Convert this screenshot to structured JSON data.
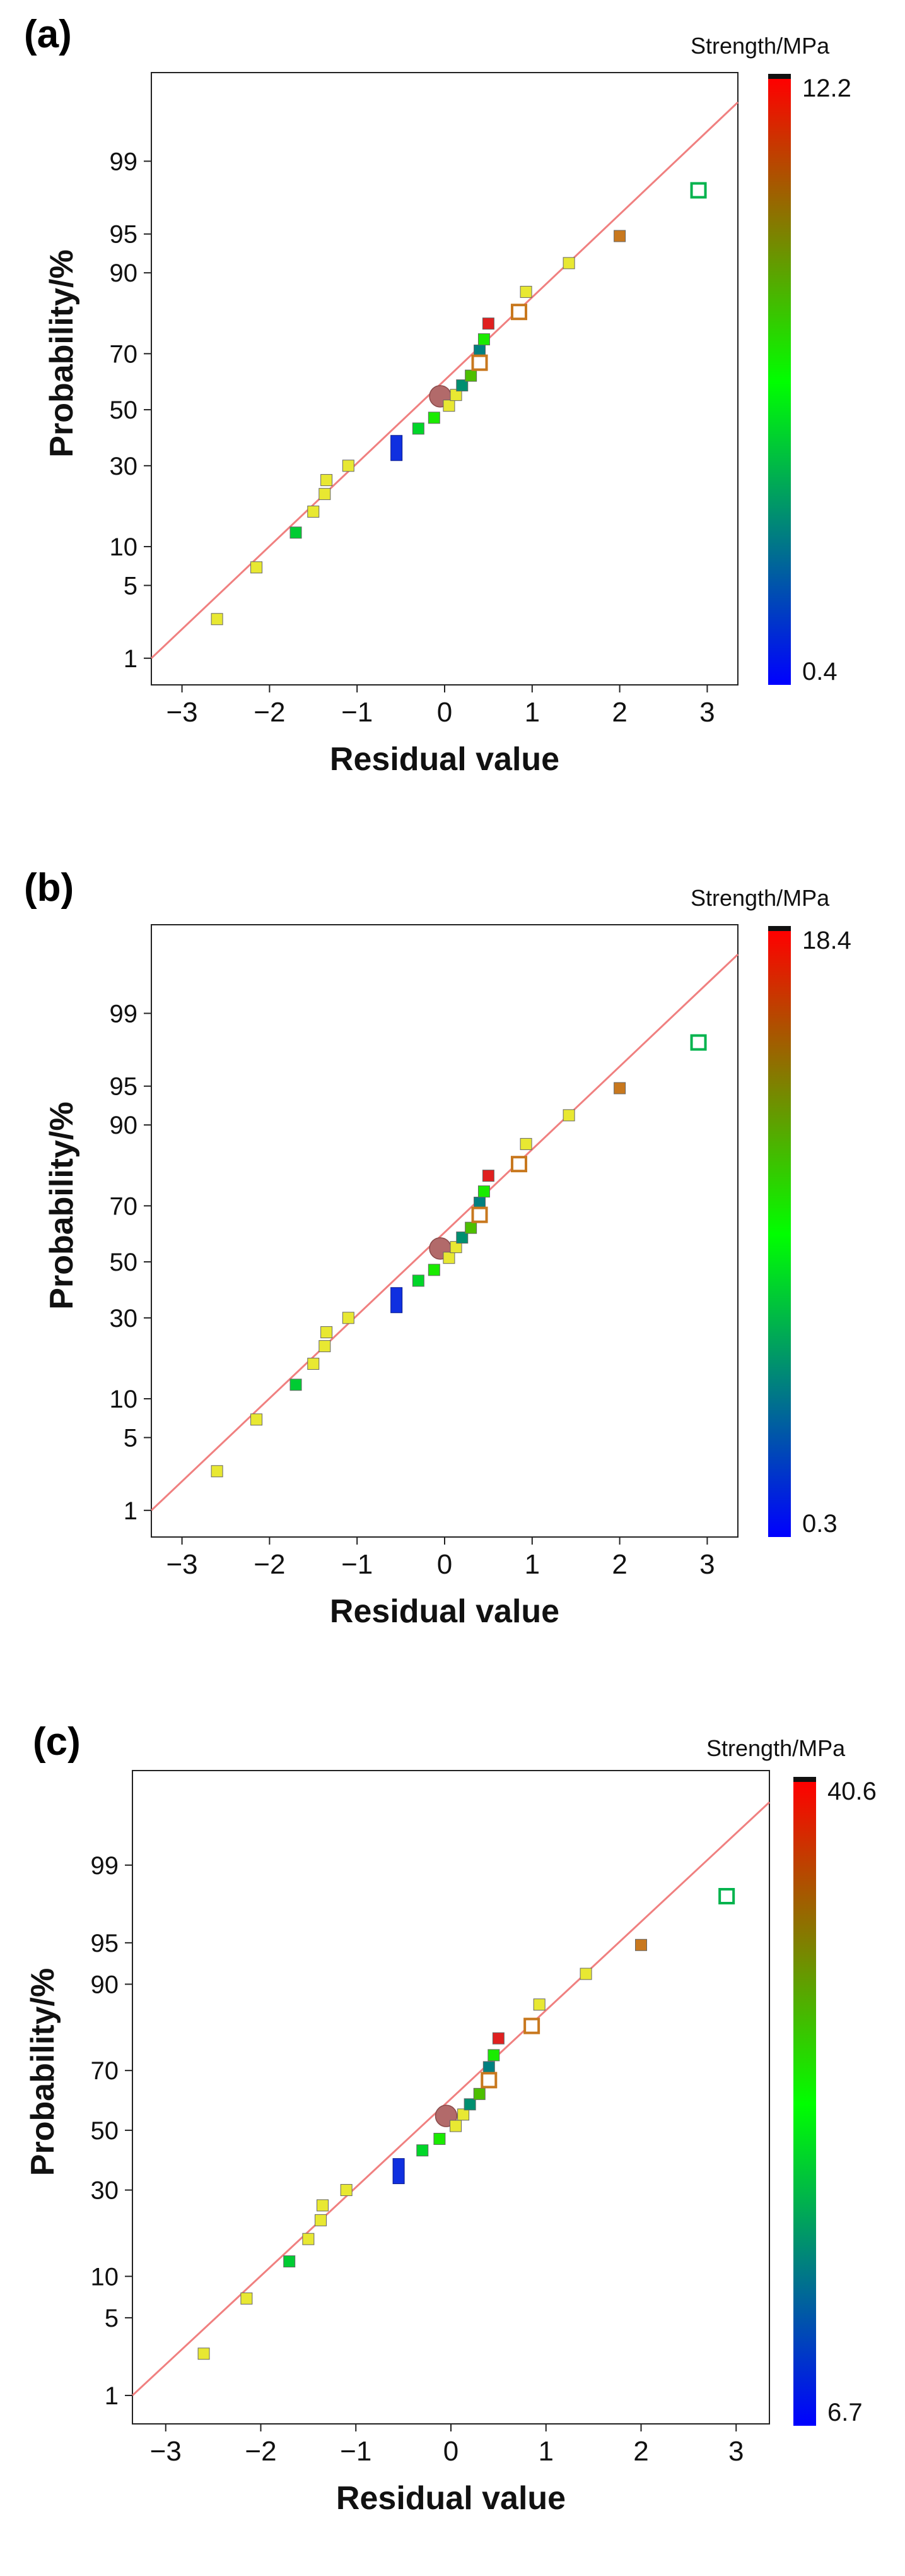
{
  "panels": [
    {
      "label": "(a)",
      "chart_data": {
        "type": "scatter",
        "title": "",
        "xlabel": "Residual value",
        "ylabel": "Probability/%",
        "xlim": [
          -3.35,
          3.35
        ],
        "xticks": [
          -3,
          -2,
          -1,
          0,
          1,
          2,
          3
        ],
        "xtick_labels": [
          "−3",
          "−2",
          "−1",
          "0",
          "1",
          "2",
          "3"
        ],
        "yticks": [
          1,
          5,
          10,
          30,
          50,
          70,
          90,
          95,
          99
        ],
        "ytick_labels": [
          "1",
          "5",
          "10",
          "30",
          "50",
          "70",
          "90",
          "95",
          "99"
        ],
        "yscale": "normal-probability",
        "colorbar": {
          "title": "Strength/MPa",
          "max": 12.2,
          "min": 0.4,
          "max_label": "12.2",
          "min_label": "0.4"
        },
        "reference_line": {
          "from": [
            -3.35,
            1.0
          ],
          "to": [
            3.35,
            99.8
          ],
          "color": "#f08080"
        },
        "points": [
          {
            "x": -2.6,
            "y": 2.5,
            "c": 0.78
          },
          {
            "x": -2.15,
            "y": 7.0,
            "c": 0.78
          },
          {
            "x": -1.7,
            "y": 12.5,
            "c": 0.4
          },
          {
            "x": -1.5,
            "y": 17.0,
            "c": 0.75
          },
          {
            "x": -1.37,
            "y": 21.5,
            "c": 0.78
          },
          {
            "x": -1.35,
            "y": 25.5,
            "c": 0.78
          },
          {
            "x": -1.1,
            "y": 30.0,
            "c": 0.78
          },
          {
            "x": -0.55,
            "y": 36.0,
            "c": 0.05,
            "shape": "tall"
          },
          {
            "x": -0.3,
            "y": 43.0,
            "c": 0.42
          },
          {
            "x": -0.12,
            "y": 47.0,
            "c": 0.55
          },
          {
            "x": -0.05,
            "y": 55.0,
            "c": 1.0,
            "shape": "big-circle"
          },
          {
            "x": 0.05,
            "y": 51.5,
            "c": 0.78
          },
          {
            "x": 0.13,
            "y": 55.5,
            "c": 0.78
          },
          {
            "x": 0.2,
            "y": 59.0,
            "c": 0.28
          },
          {
            "x": 0.3,
            "y": 62.5,
            "c": 0.65
          },
          {
            "x": 0.4,
            "y": 71.0,
            "c": 0.25
          },
          {
            "x": 0.45,
            "y": 74.5,
            "c": 0.55
          },
          {
            "x": 0.5,
            "y": 79.0,
            "c": 0.99
          },
          {
            "x": 0.4,
            "y": 67.0,
            "c": 0.85,
            "shape": "open-square"
          },
          {
            "x": 0.85,
            "y": 82.0,
            "c": 0.85,
            "shape": "open-square"
          },
          {
            "x": 0.93,
            "y": 86.5,
            "c": 0.75
          },
          {
            "x": 1.42,
            "y": 91.5,
            "c": 0.78
          },
          {
            "x": 2.0,
            "y": 94.8,
            "c": 0.88
          },
          {
            "x": 2.9,
            "y": 98.0,
            "c": 0.35,
            "shape": "open-square"
          }
        ]
      }
    },
    {
      "label": "(b)",
      "chart_data": {
        "type": "scatter",
        "title": "",
        "xlabel": "Residual value",
        "ylabel": "Probability/%",
        "xlim": [
          -3.35,
          3.35
        ],
        "xticks": [
          -3,
          -2,
          -1,
          0,
          1,
          2,
          3
        ],
        "xtick_labels": [
          "−3",
          "−2",
          "−1",
          "0",
          "1",
          "2",
          "3"
        ],
        "yticks": [
          1,
          5,
          10,
          30,
          50,
          70,
          90,
          95,
          99
        ],
        "ytick_labels": [
          "1",
          "5",
          "10",
          "30",
          "50",
          "70",
          "90",
          "95",
          "99"
        ],
        "yscale": "normal-probability",
        "colorbar": {
          "title": "Strength/MPa",
          "max": 18.4,
          "min": 0.3,
          "max_label": "18.4",
          "min_label": "0.3"
        },
        "reference_line": {
          "from": [
            -3.35,
            1.0
          ],
          "to": [
            3.35,
            99.8
          ],
          "color": "#f08080"
        },
        "points": [
          {
            "x": -2.6,
            "y": 2.5,
            "c": 0.78
          },
          {
            "x": -2.15,
            "y": 7.0,
            "c": 0.78
          },
          {
            "x": -1.7,
            "y": 12.5,
            "c": 0.4
          },
          {
            "x": -1.5,
            "y": 17.0,
            "c": 0.75
          },
          {
            "x": -1.37,
            "y": 21.5,
            "c": 0.78
          },
          {
            "x": -1.35,
            "y": 25.5,
            "c": 0.78
          },
          {
            "x": -1.1,
            "y": 30.0,
            "c": 0.78
          },
          {
            "x": -0.55,
            "y": 36.0,
            "c": 0.05,
            "shape": "tall"
          },
          {
            "x": -0.3,
            "y": 43.0,
            "c": 0.42
          },
          {
            "x": -0.12,
            "y": 47.0,
            "c": 0.55
          },
          {
            "x": -0.05,
            "y": 55.0,
            "c": 1.0,
            "shape": "big-circle"
          },
          {
            "x": 0.05,
            "y": 51.5,
            "c": 0.78
          },
          {
            "x": 0.13,
            "y": 55.5,
            "c": 0.78
          },
          {
            "x": 0.2,
            "y": 59.0,
            "c": 0.28
          },
          {
            "x": 0.3,
            "y": 62.5,
            "c": 0.65
          },
          {
            "x": 0.4,
            "y": 71.0,
            "c": 0.25
          },
          {
            "x": 0.45,
            "y": 74.5,
            "c": 0.55
          },
          {
            "x": 0.5,
            "y": 79.0,
            "c": 0.99
          },
          {
            "x": 0.4,
            "y": 67.0,
            "c": 0.85,
            "shape": "open-square"
          },
          {
            "x": 0.85,
            "y": 82.0,
            "c": 0.85,
            "shape": "open-square"
          },
          {
            "x": 0.93,
            "y": 86.5,
            "c": 0.75
          },
          {
            "x": 1.42,
            "y": 91.5,
            "c": 0.78
          },
          {
            "x": 2.0,
            "y": 94.8,
            "c": 0.88
          },
          {
            "x": 2.9,
            "y": 98.0,
            "c": 0.35,
            "shape": "open-square"
          }
        ]
      }
    },
    {
      "label": "(c)",
      "chart_data": {
        "type": "scatter",
        "title": "",
        "xlabel": "Residual value",
        "ylabel": "Probability/%",
        "xlim": [
          -3.35,
          3.35
        ],
        "xticks": [
          -3,
          -2,
          -1,
          0,
          1,
          2,
          3
        ],
        "xtick_labels": [
          "−3",
          "−2",
          "−1",
          "0",
          "1",
          "2",
          "3"
        ],
        "yticks": [
          1,
          5,
          10,
          30,
          50,
          70,
          90,
          95,
          99
        ],
        "ytick_labels": [
          "1",
          "5",
          "10",
          "30",
          "50",
          "70",
          "90",
          "95",
          "99"
        ],
        "yscale": "normal-probability",
        "colorbar": {
          "title": "Strength/MPa",
          "max": 40.6,
          "min": 6.7,
          "max_label": "40.6",
          "min_label": "6.7"
        },
        "reference_line": {
          "from": [
            -3.35,
            1.0
          ],
          "to": [
            3.35,
            99.8
          ],
          "color": "#f08080"
        },
        "points": [
          {
            "x": -2.6,
            "y": 2.5,
            "c": 0.78
          },
          {
            "x": -2.15,
            "y": 7.0,
            "c": 0.78
          },
          {
            "x": -1.7,
            "y": 12.5,
            "c": 0.4
          },
          {
            "x": -1.5,
            "y": 17.0,
            "c": 0.75
          },
          {
            "x": -1.37,
            "y": 21.5,
            "c": 0.78
          },
          {
            "x": -1.35,
            "y": 25.5,
            "c": 0.78
          },
          {
            "x": -1.1,
            "y": 30.0,
            "c": 0.78
          },
          {
            "x": -0.55,
            "y": 36.0,
            "c": 0.05,
            "shape": "tall"
          },
          {
            "x": -0.3,
            "y": 43.0,
            "c": 0.42
          },
          {
            "x": -0.12,
            "y": 47.0,
            "c": 0.55
          },
          {
            "x": -0.05,
            "y": 55.0,
            "c": 1.0,
            "shape": "big-circle"
          },
          {
            "x": 0.05,
            "y": 51.5,
            "c": 0.78
          },
          {
            "x": 0.13,
            "y": 55.5,
            "c": 0.78
          },
          {
            "x": 0.2,
            "y": 59.0,
            "c": 0.28
          },
          {
            "x": 0.3,
            "y": 62.5,
            "c": 0.65
          },
          {
            "x": 0.4,
            "y": 71.0,
            "c": 0.25
          },
          {
            "x": 0.45,
            "y": 74.5,
            "c": 0.55
          },
          {
            "x": 0.5,
            "y": 79.0,
            "c": 0.99
          },
          {
            "x": 0.4,
            "y": 67.0,
            "c": 0.85,
            "shape": "open-square"
          },
          {
            "x": 0.85,
            "y": 82.0,
            "c": 0.85,
            "shape": "open-square"
          },
          {
            "x": 0.93,
            "y": 86.5,
            "c": 0.75
          },
          {
            "x": 1.42,
            "y": 91.5,
            "c": 0.78
          },
          {
            "x": 2.0,
            "y": 94.8,
            "c": 0.88
          },
          {
            "x": 2.9,
            "y": 98.0,
            "c": 0.35,
            "shape": "open-square"
          }
        ]
      }
    }
  ]
}
